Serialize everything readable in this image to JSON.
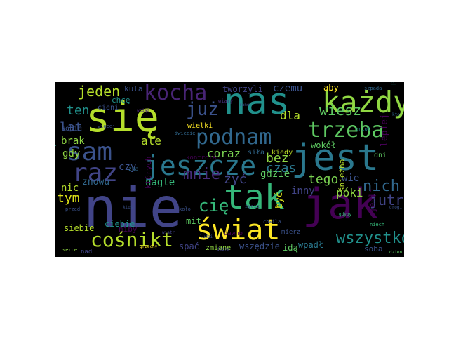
{
  "wordcloud": {
    "background": "#000000",
    "words": [
      {
        "text": "nie",
        "color": "#414487"
      },
      {
        "text": "się",
        "color": "#b5de2b"
      },
      {
        "text": "nas",
        "color": "#21918c"
      },
      {
        "text": "jest",
        "color": "#2a788e"
      },
      {
        "text": "jak",
        "color": "#440154"
      },
      {
        "text": "tak",
        "color": "#35b779"
      },
      {
        "text": "świat",
        "color": "#fde725"
      },
      {
        "text": "jeszcze",
        "color": "#2a788e"
      },
      {
        "text": "każdy",
        "color": "#90d743"
      },
      {
        "text": "kocha",
        "color": "#482475"
      },
      {
        "text": "sam",
        "color": "#3b528b"
      },
      {
        "text": "raz",
        "color": "#414487"
      },
      {
        "text": "trzeba",
        "color": "#5ec962"
      },
      {
        "text": "podnam",
        "color": "#31688e"
      },
      {
        "text": "cośnikt",
        "color": "#b5de2b"
      },
      {
        "text": "już",
        "color": "#3b528b"
      },
      {
        "text": "wszystko",
        "color": "#21918c"
      },
      {
        "text": "jeden",
        "color": "#b5de2b"
      },
      {
        "text": "wiesz",
        "color": "#5ec962"
      },
      {
        "text": "bez",
        "color": "#90d743"
      },
      {
        "text": "tego",
        "color": "#7ad151"
      },
      {
        "text": "nich",
        "color": "#31688e"
      },
      {
        "text": "czas",
        "color": "#2a788e"
      },
      {
        "text": "mnie",
        "color": "#472d7b"
      },
      {
        "text": "cię",
        "color": "#35b779"
      },
      {
        "text": "tym",
        "color": "#dde318"
      },
      {
        "text": "ten",
        "color": "#21918c"
      },
      {
        "text": "lat",
        "color": "#3b528b"
      },
      {
        "text": "czemu",
        "color": "#3b528b"
      },
      {
        "text": "dla",
        "color": "#b5de2b"
      },
      {
        "text": "coraz",
        "color": "#7ad151"
      },
      {
        "text": "ale",
        "color": "#b5de2b"
      },
      {
        "text": "czy",
        "color": "#3b528b"
      },
      {
        "text": "jutro",
        "color": "#414487"
      },
      {
        "text": "wie",
        "color": "#3b528b"
      },
      {
        "text": "gdzie",
        "color": "#5ec962"
      },
      {
        "text": "inny",
        "color": "#414487"
      },
      {
        "text": "póki",
        "color": "#90d743"
      },
      {
        "text": "żyć",
        "color": "#414487"
      },
      {
        "text": "nagle",
        "color": "#35b779"
      },
      {
        "text": "brak",
        "color": "#90d743"
      },
      {
        "text": "gdy",
        "color": "#90d743"
      },
      {
        "text": "nic",
        "color": "#b5de2b"
      },
      {
        "text": "znowu",
        "color": "#31688e"
      },
      {
        "text": "wpadł",
        "color": "#2a788e"
      },
      {
        "text": "śnieżna",
        "color": "#b5de2b"
      },
      {
        "text": "jeśli",
        "color": "#440154"
      },
      {
        "text": "lepiej",
        "color": "#440154"
      },
      {
        "text": "kiedy",
        "color": "#bddf26"
      },
      {
        "text": "wokół",
        "color": "#5ec962"
      },
      {
        "text": "siebie",
        "color": "#b5de2b"
      },
      {
        "text": "ciebie",
        "color": "#21918c"
      },
      {
        "text": "niby",
        "color": "#440154"
      },
      {
        "text": "wszędzie",
        "color": "#3b528b"
      },
      {
        "text": "idą",
        "color": "#5ec962"
      },
      {
        "text": "zmiane",
        "color": "#90d743"
      },
      {
        "text": "spać",
        "color": "#414487"
      },
      {
        "text": "mit",
        "color": "#5ec962"
      },
      {
        "text": "być",
        "color": "#dde318"
      },
      {
        "text": "tworzyli",
        "color": "#414487"
      },
      {
        "text": "kula",
        "color": "#3b528b"
      },
      {
        "text": "aby",
        "color": "#fde725"
      },
      {
        "text": "chcę",
        "color": "#21918c"
      },
      {
        "text": "wielki",
        "color": "#fde725"
      },
      {
        "text": "soba",
        "color": "#3b528b"
      },
      {
        "text": "nad",
        "color": "#414487"
      },
      {
        "text": "wszystkie",
        "color": "#1f9e89"
      },
      {
        "text": "sobie",
        "color": "#3b528b"
      },
      {
        "text": "cieni",
        "color": "#3b528b"
      },
      {
        "text": "dni",
        "color": "#5ec962"
      },
      {
        "text": "siła",
        "color": "#31688e"
      },
      {
        "text": "dawno",
        "color": "#440154"
      },
      {
        "text": "mierz",
        "color": "#3b528b"
      },
      {
        "text": "których",
        "color": "#440154"
      },
      {
        "text": "kontrolą",
        "color": "#440154"
      },
      {
        "text": "przytnga",
        "color": "#21918c"
      },
      {
        "text": "szpada",
        "color": "#31688e"
      },
      {
        "text": "zna",
        "color": "#31688e"
      },
      {
        "text": "wiary",
        "color": "#472d7b"
      },
      {
        "text": "koło",
        "color": "#3b528b"
      },
      {
        "text": "przed",
        "color": "#3b528b"
      },
      {
        "text": "świecie",
        "color": "#31688e"
      },
      {
        "text": "niech",
        "color": "#35b779"
      },
      {
        "text": "życie",
        "color": "#3b528b"
      },
      {
        "text": "grzechy",
        "color": "#fde725"
      },
      {
        "text": "chwila",
        "color": "#3b528b"
      },
      {
        "text": "anioł",
        "color": "#21918c"
      },
      {
        "text": "dobra",
        "color": "#414487"
      },
      {
        "text": "więcej",
        "color": "#3b528b"
      },
      {
        "text": "serce",
        "color": "#90d743"
      },
      {
        "text": "wiatr",
        "color": "#414487"
      },
      {
        "text": "drogi",
        "color": "#3b528b"
      },
      {
        "text": "ludzi",
        "color": "#3b528b"
      },
      {
        "text": "gdyby",
        "color": "#35b779"
      },
      {
        "text": "dzień",
        "color": "#5ec962"
      },
      {
        "text": "wciąż",
        "color": "#482475"
      },
      {
        "text": "rano",
        "color": "#3b528b"
      },
      {
        "text": "kto",
        "color": "#31688e"
      },
      {
        "text": "ktoś",
        "color": "#3b528b"
      }
    ]
  }
}
